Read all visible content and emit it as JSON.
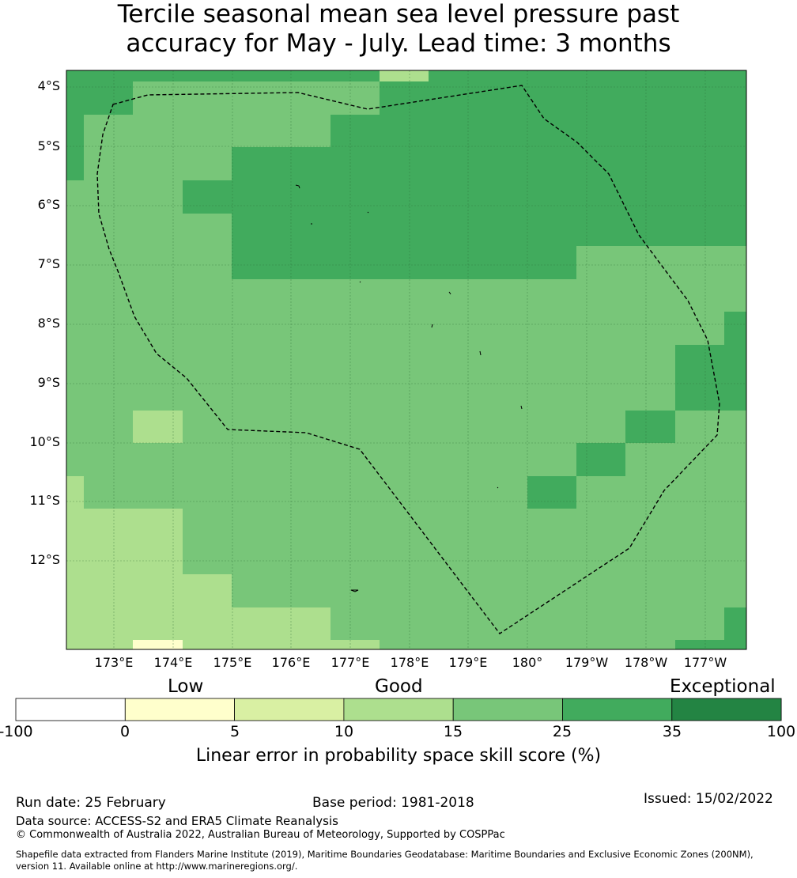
{
  "title_line1": "Tercile seasonal mean sea level pressure past",
  "title_line2": "accuracy for May - July. Lead time: 3 months",
  "lat_labels": [
    "4°S",
    "5°S",
    "6°S",
    "7°S",
    "8°S",
    "9°S",
    "10°S",
    "11°S",
    "12°S"
  ],
  "lon_labels": [
    "173°E",
    "174°E",
    "175°E",
    "176°E",
    "177°E",
    "178°E",
    "179°E",
    "180°",
    "179°W",
    "178°W",
    "177°W"
  ],
  "map_colors": {
    "c10_15": "#addf8e",
    "c15_25": "#78c679",
    "c25_35": "#41ab5d",
    "c5_10": "#d9f0a3",
    "c0_5": "#ffffcc",
    "border": "#000000"
  },
  "colorbar": {
    "categories": [
      "Low",
      "Good",
      "Exceptional"
    ],
    "ticks": [
      "-100",
      "0",
      "5",
      "10",
      "15",
      "25",
      "35",
      "100"
    ],
    "colors": [
      "#ffffff",
      "#ffffcc",
      "#d9f0a3",
      "#addf8e",
      "#78c679",
      "#41ab5d",
      "#238443"
    ],
    "label": "Linear error in probability space skill score (%)"
  },
  "footer": {
    "run_date": "Run date: 25 February",
    "base_period": "Base period: 1981-2018",
    "issued": "Issued: 15/02/2022",
    "data_source": "Data source: ACCESS-S2 and ERA5 Climate Reanalysis",
    "copyright": "© Commonwealth of Australia 2022, Australian Bureau of Meteorology, Supported by COSPPac",
    "shapefile_line1": "Shapefile data extracted from Flanders Marine Institute (2019), Maritime Boundaries Geodatabase: Maritime Boundaries and Exclusive Economic Zones (200NM),",
    "shapefile_line2": "version 11. Available online at http://www.marineregions.org/."
  }
}
